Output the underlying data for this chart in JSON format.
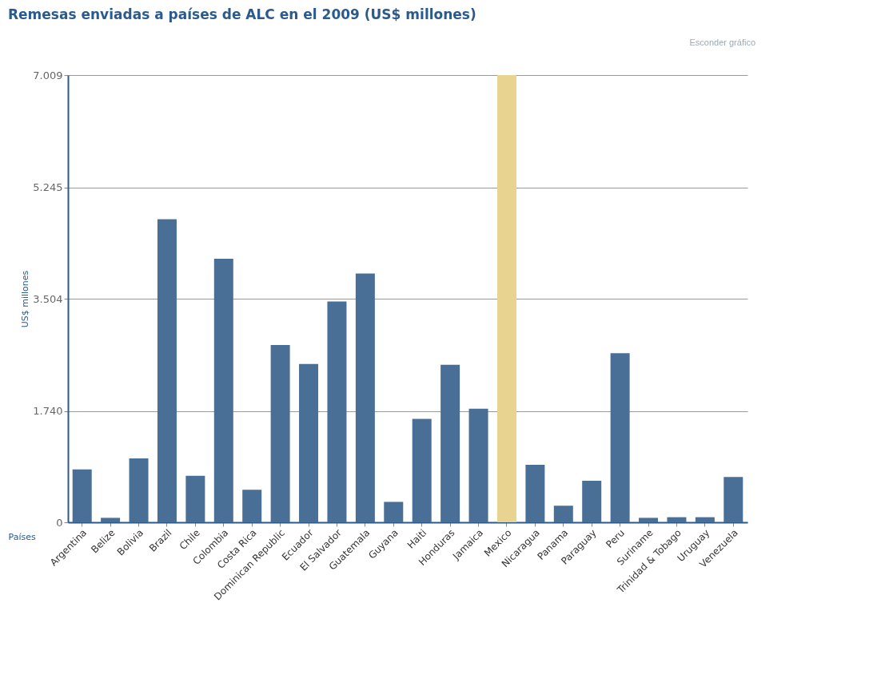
{
  "chart_data": {
    "type": "bar",
    "title": "Remesas enviadas a países de ALC en el 2009 (US$ millones)",
    "xlabel": "Países",
    "ylabel": "US$ millones",
    "categories": [
      "Argentina",
      "Belize",
      "Bolivia",
      "Brazil",
      "Chile",
      "Colombia",
      "Costa Rica",
      "Dominican Republic",
      "Ecuador",
      "El Salvador",
      "Guatemala",
      "Guyana",
      "Haiti",
      "Honduras",
      "Jamaica",
      "Mexico",
      "Nicaragua",
      "Panama",
      "Paraguay",
      "Peru",
      "Suriname",
      "Trinidad & Tobago",
      "Uruguay",
      "Venezuela"
    ],
    "values": [
      830,
      70,
      1000,
      4750,
      730,
      4130,
      510,
      2780,
      2480,
      3460,
      3900,
      320,
      1620,
      2470,
      1780,
      7009,
      900,
      260,
      650,
      2650,
      70,
      80,
      80,
      710
    ],
    "colors": [
      "#4a6f96",
      "#4a6f96",
      "#4a6f96",
      "#4a6f96",
      "#4a6f96",
      "#4a6f96",
      "#4a6f96",
      "#4a6f96",
      "#4a6f96",
      "#4a6f96",
      "#4a6f96",
      "#4a6f96",
      "#4a6f96",
      "#4a6f96",
      "#4a6f96",
      "#e8d490",
      "#4a6f96",
      "#4a6f96",
      "#4a6f96",
      "#4a6f96",
      "#4a6f96",
      "#4a6f96",
      "#4a6f96",
      "#4a6f96"
    ],
    "ylim": [
      0,
      7009
    ],
    "yticks": [
      0,
      {
        "value": 1740,
        "label": "1.740"
      },
      {
        "value": 3504,
        "label": "3.504"
      },
      {
        "value": 5245,
        "label": "5.245"
      },
      {
        "value": 7009,
        "label": "7.009"
      }
    ],
    "grid": "y",
    "annotations": [
      "Esconder gráfico"
    ]
  }
}
